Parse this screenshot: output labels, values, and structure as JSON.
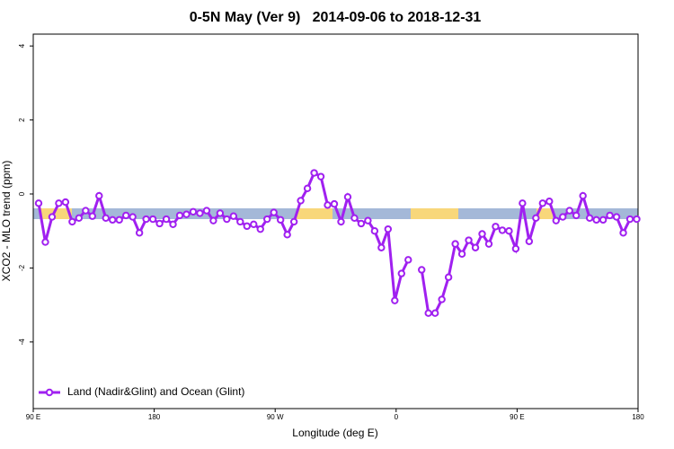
{
  "chart_data": {
    "type": "line",
    "title": "0-5N May (Ver 9)   2014-09-06 to 2018-12-31",
    "x_label": "Longitude (deg E)",
    "y_label": "XCO2 - MLO trend (ppm)",
    "xlim": [
      90,
      540
    ],
    "ylim": [
      -5.8,
      4.32
    ],
    "xticks": [
      {
        "value": 90,
        "label": "90 E"
      },
      180,
      {
        "value": 270,
        "label": "90 W"
      },
      {
        "value": 360,
        "label": "0"
      },
      {
        "value": 450,
        "label": "90 E"
      },
      {
        "value": 540,
        "label": "180"
      }
    ],
    "yticks": [
      -4,
      -2,
      0,
      2,
      4
    ],
    "legend": "bottom-left",
    "x": [
      94,
      99,
      104,
      109,
      114,
      119,
      124,
      129,
      134,
      139,
      144,
      149,
      154,
      159,
      164,
      169,
      174,
      179,
      184,
      189,
      194,
      199,
      204,
      209,
      214,
      219,
      224,
      229,
      234,
      239,
      244,
      249,
      254,
      259,
      264,
      269,
      274,
      279,
      284,
      289,
      294,
      299,
      304,
      309,
      314,
      319,
      324,
      329,
      334,
      339,
      344,
      349,
      354,
      359,
      364,
      369,
      374,
      379,
      384,
      389,
      394,
      399,
      404,
      409,
      414,
      419,
      424,
      429,
      434,
      439,
      444,
      449,
      454,
      459,
      464,
      469,
      474,
      479,
      484,
      489,
      494,
      499,
      504,
      509,
      514,
      519,
      524,
      529,
      534,
      539
    ],
    "series": [
      {
        "name": "Land (Nadir&Glint) and Ocean (Glint)",
        "color": "#a020f0",
        "values": [
          -0.25,
          -1.3,
          -0.62,
          -0.25,
          -0.22,
          -0.75,
          -0.65,
          -0.45,
          -0.6,
          -0.05,
          -0.65,
          -0.7,
          -0.7,
          -0.58,
          -0.62,
          -1.05,
          -0.68,
          -0.68,
          -0.8,
          -0.68,
          -0.82,
          -0.58,
          -0.55,
          -0.48,
          -0.52,
          -0.45,
          -0.72,
          -0.52,
          -0.68,
          -0.6,
          -0.75,
          -0.87,
          -0.82,
          -0.95,
          -0.68,
          -0.5,
          -0.7,
          -1.1,
          -0.75,
          -0.18,
          0.15,
          0.57,
          0.47,
          -0.3,
          -0.27,
          -0.75,
          -0.08,
          -0.65,
          -0.8,
          -0.72,
          -1.0,
          -1.45,
          -0.95,
          -2.88,
          -2.15,
          -1.78,
          null,
          -2.05,
          -3.22,
          -3.22,
          -2.85,
          -2.25,
          -1.35,
          -1.62,
          -1.25,
          -1.45,
          -1.08,
          -1.35,
          -0.88,
          -0.98,
          -1.0,
          -1.48,
          -0.25,
          -1.28,
          -0.65,
          -0.25,
          -0.2,
          -0.72,
          -0.62,
          -0.45,
          -0.58,
          -0.05,
          -0.65,
          -0.7,
          -0.7,
          -0.58,
          -0.62,
          -1.05,
          -0.68,
          -0.68
        ]
      }
    ]
  }
}
